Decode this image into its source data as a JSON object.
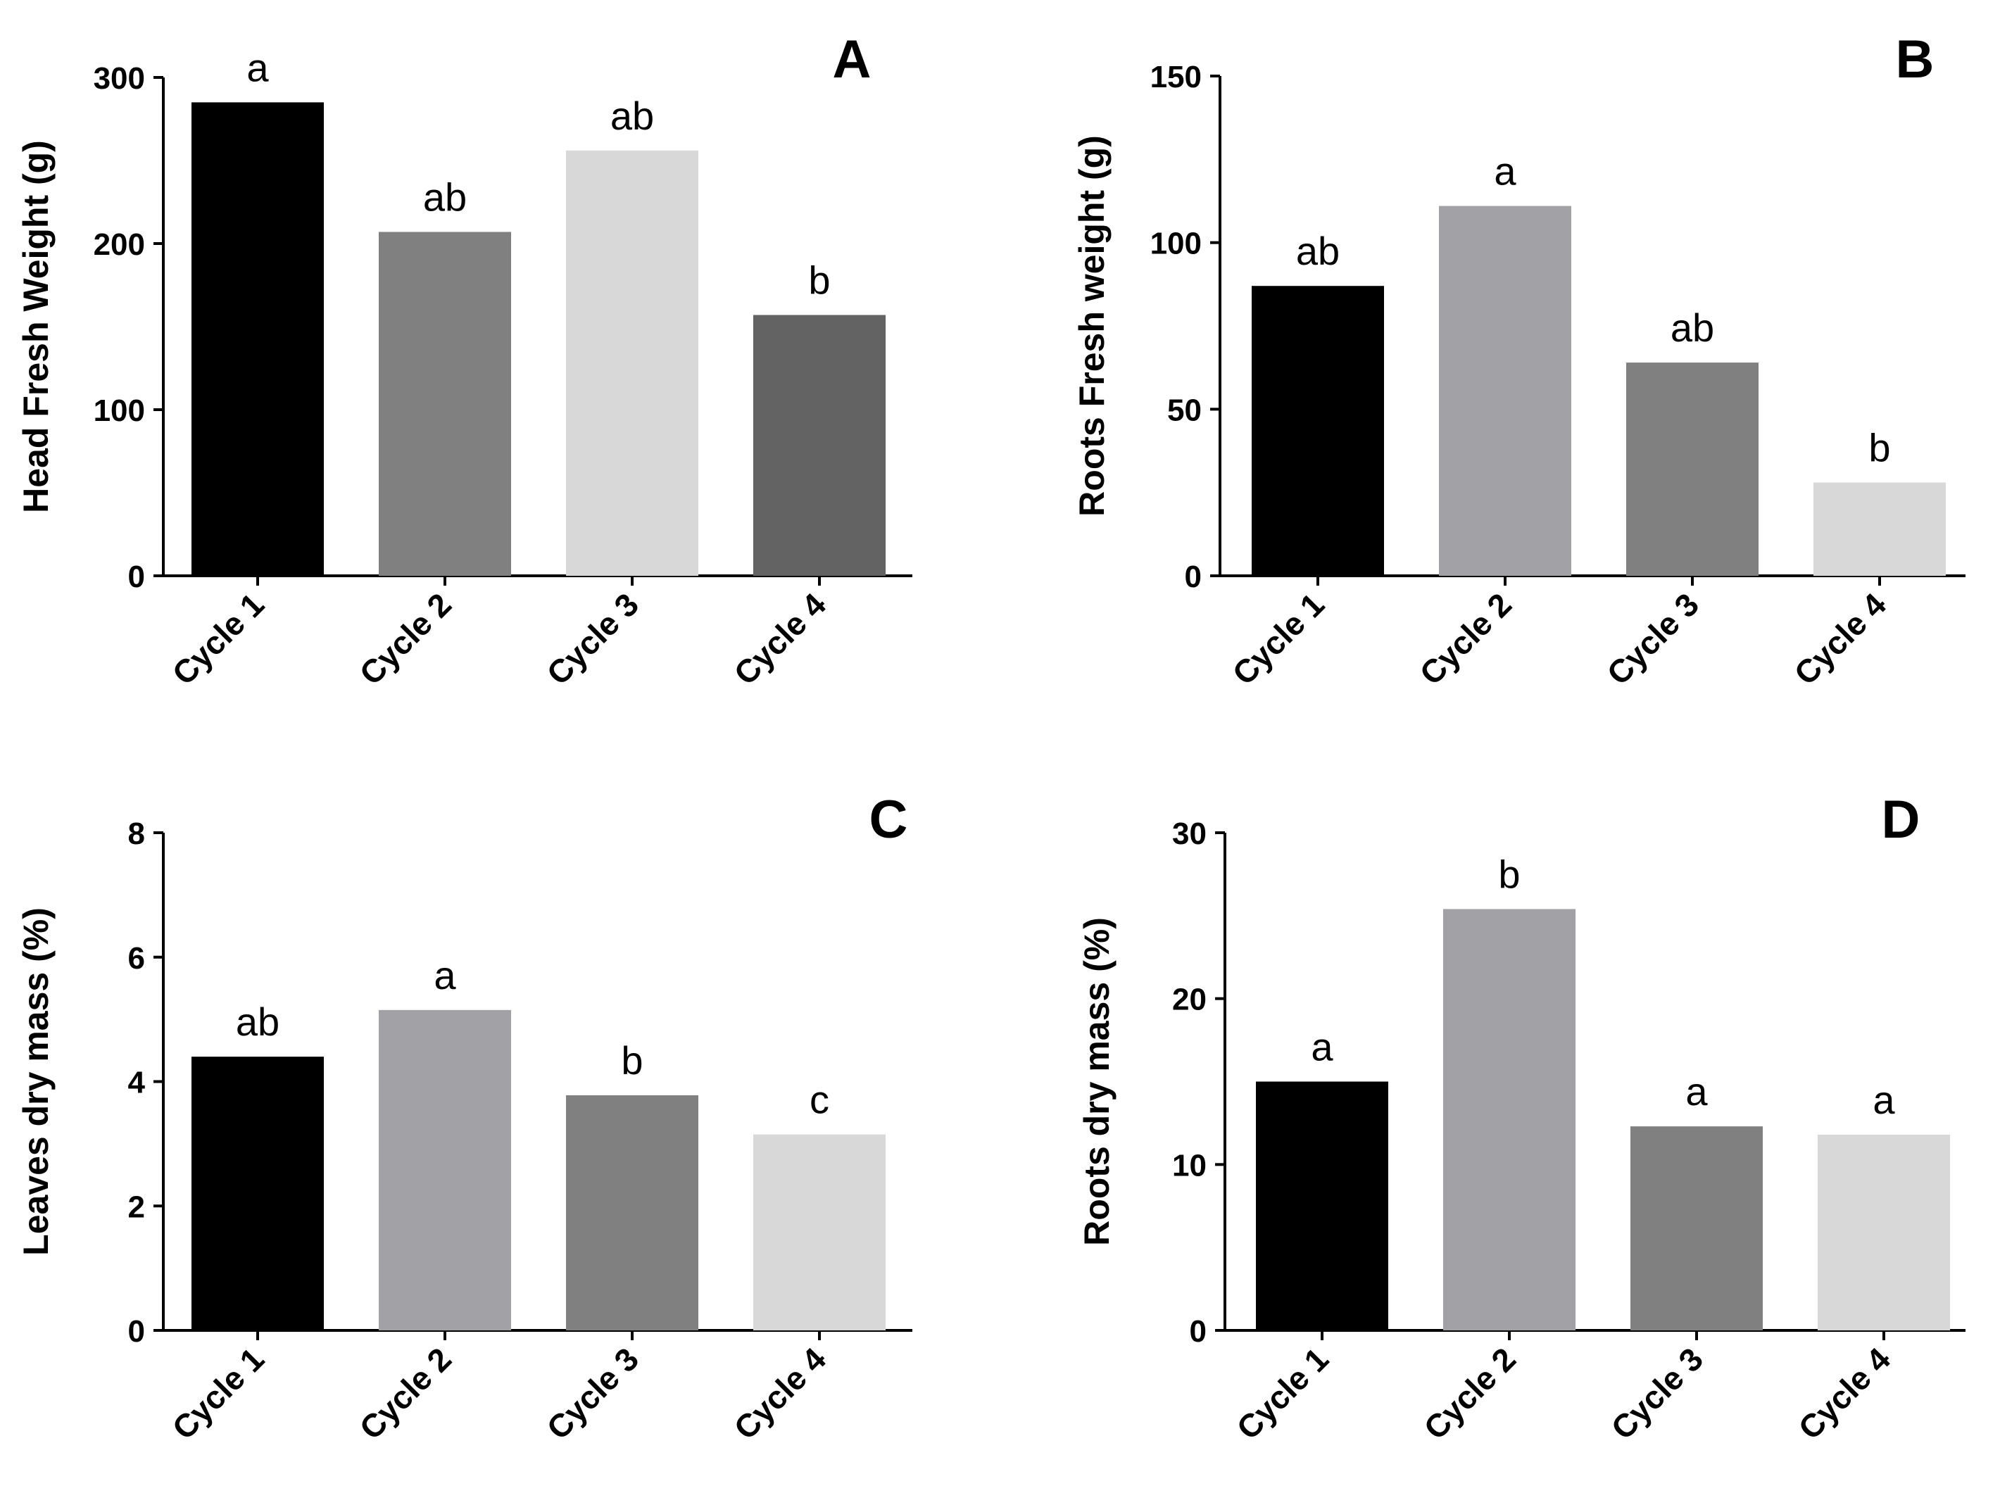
{
  "chart_data": [
    {
      "type": "bar",
      "panel": "A",
      "categories": [
        "Cycle 1",
        "Cycle 2",
        "Cycle 3",
        "Cycle 4"
      ],
      "values": [
        285,
        207,
        256,
        157
      ],
      "significance": [
        "a",
        "ab",
        "ab",
        "b"
      ],
      "colors": [
        "#000000",
        "#808080",
        "#d8d8d8",
        "#636363"
      ],
      "ylabel": "Head Fresh Weight (g)",
      "ylim": [
        0,
        300
      ],
      "yticks": [
        0,
        100,
        200,
        300
      ]
    },
    {
      "type": "bar",
      "panel": "B",
      "categories": [
        "Cycle 1",
        "Cycle 2",
        "Cycle 3",
        "Cycle 4"
      ],
      "values": [
        87,
        111,
        64,
        28
      ],
      "significance": [
        "ab",
        "a",
        "ab",
        "b"
      ],
      "colors": [
        "#000000",
        "#a2a1a6",
        "#808080",
        "#d8d8d8"
      ],
      "ylabel": "Roots Fresh weight  (g)",
      "ylim": [
        0,
        150
      ],
      "yticks": [
        0,
        50,
        100,
        150
      ]
    },
    {
      "type": "bar",
      "panel": "C",
      "categories": [
        "Cycle 1",
        "Cycle 2",
        "Cycle 3",
        "Cycle 4"
      ],
      "values": [
        4.4,
        5.15,
        3.78,
        3.15
      ],
      "significance": [
        "ab",
        "a",
        "b",
        "c"
      ],
      "colors": [
        "#000000",
        "#a2a1a6",
        "#808080",
        "#d8d8d8"
      ],
      "ylabel": "Leaves dry mass (%)",
      "ylim": [
        0,
        8
      ],
      "yticks": [
        0,
        2,
        4,
        6,
        8
      ]
    },
    {
      "type": "bar",
      "panel": "D",
      "categories": [
        "Cycle 1",
        "Cycle 2",
        "Cycle 3",
        "Cycle 4"
      ],
      "values": [
        15,
        25.4,
        12.3,
        11.8
      ],
      "significance": [
        "a",
        "b",
        "a",
        "a"
      ],
      "colors": [
        "#000000",
        "#a2a1a6",
        "#808080",
        "#d8d8d8"
      ],
      "ylabel": "Roots dry mass (%)",
      "ylim": [
        0,
        30
      ],
      "yticks": [
        0,
        10,
        20,
        30
      ]
    }
  ]
}
